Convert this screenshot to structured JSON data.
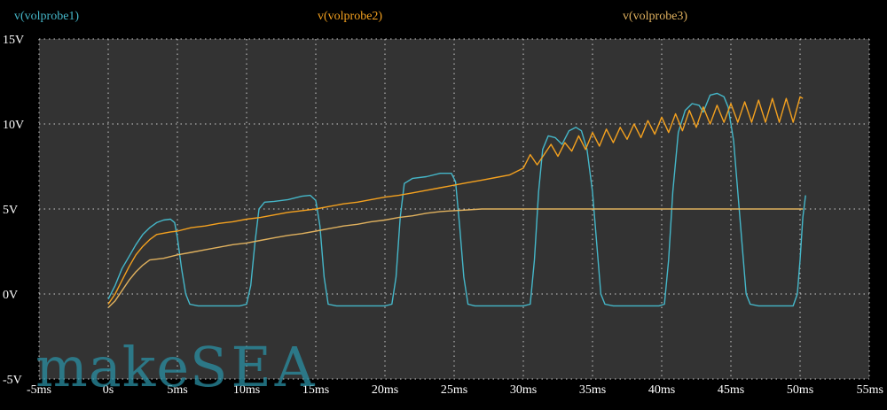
{
  "legend": {
    "probe1": "v(volprobe1)",
    "probe2": "v(volprobe2)",
    "probe3": "v(volprobe3)"
  },
  "watermark": {
    "lower": "make",
    "upper": "SEA"
  },
  "colors": {
    "background": "#000000",
    "plot_area": "#333333",
    "grid": "#cccccc",
    "tick_label": "#ffffff",
    "probe1": "#45b7c9",
    "probe2": "#f4a11f",
    "probe3": "#e0b15e"
  },
  "chart_data": {
    "type": "line",
    "title": "",
    "xlabel": "",
    "ylabel": "",
    "xlim": [
      -5,
      55
    ],
    "ylim": [
      -5,
      15
    ],
    "grid": true,
    "legend_position": "top",
    "x_ticks": [
      -5,
      0,
      5,
      10,
      15,
      20,
      25,
      30,
      35,
      40,
      45,
      50,
      55
    ],
    "x_tick_labels": [
      "-5ms",
      "0s",
      "5ms",
      "10ms",
      "15ms",
      "20ms",
      "25ms",
      "30ms",
      "35ms",
      "40ms",
      "45ms",
      "50ms",
      "55ms"
    ],
    "y_ticks": [
      -5,
      0,
      5,
      10,
      15
    ],
    "y_tick_labels": [
      "-5V",
      "0V",
      "5V",
      "10V",
      "15V"
    ],
    "series": [
      {
        "name": "v(volprobe1)",
        "color": "#45b7c9",
        "points": [
          [
            0,
            -0.3
          ],
          [
            0.5,
            0.5
          ],
          [
            1,
            1.5
          ],
          [
            1.5,
            2.2
          ],
          [
            2,
            2.9
          ],
          [
            2.5,
            3.5
          ],
          [
            3,
            3.9
          ],
          [
            3.5,
            4.2
          ],
          [
            4,
            4.35
          ],
          [
            4.5,
            4.4
          ],
          [
            4.8,
            4.2
          ],
          [
            5,
            3.3
          ],
          [
            5.3,
            1.5
          ],
          [
            5.6,
            0
          ],
          [
            5.9,
            -0.6
          ],
          [
            6.5,
            -0.7
          ],
          [
            9.5,
            -0.7
          ],
          [
            10,
            -0.6
          ],
          [
            10.3,
            0.5
          ],
          [
            10.6,
            3
          ],
          [
            10.9,
            5
          ],
          [
            11.3,
            5.4
          ],
          [
            12,
            5.45
          ],
          [
            13,
            5.55
          ],
          [
            14,
            5.75
          ],
          [
            14.6,
            5.8
          ],
          [
            15,
            5.5
          ],
          [
            15.3,
            4
          ],
          [
            15.6,
            1
          ],
          [
            15.9,
            -0.6
          ],
          [
            16.5,
            -0.7
          ],
          [
            20,
            -0.7
          ],
          [
            20.5,
            -0.6
          ],
          [
            20.8,
            1
          ],
          [
            21.1,
            4.5
          ],
          [
            21.4,
            6.5
          ],
          [
            22,
            6.8
          ],
          [
            23,
            6.9
          ],
          [
            24,
            7.1
          ],
          [
            24.8,
            7.1
          ],
          [
            25.1,
            6.6
          ],
          [
            25.4,
            4
          ],
          [
            25.7,
            1
          ],
          [
            26,
            -0.6
          ],
          [
            26.5,
            -0.7
          ],
          [
            30,
            -0.7
          ],
          [
            30.5,
            -0.6
          ],
          [
            30.8,
            2
          ],
          [
            31.1,
            6
          ],
          [
            31.4,
            8.5
          ],
          [
            31.8,
            9.3
          ],
          [
            32.3,
            9.2
          ],
          [
            32.8,
            8.8
          ],
          [
            33.3,
            9.6
          ],
          [
            33.8,
            9.8
          ],
          [
            34.2,
            9.6
          ],
          [
            34.6,
            8.5
          ],
          [
            35,
            6
          ],
          [
            35.3,
            3
          ],
          [
            35.6,
            0
          ],
          [
            35.9,
            -0.6
          ],
          [
            36.5,
            -0.7
          ],
          [
            39.8,
            -0.7
          ],
          [
            40.2,
            -0.6
          ],
          [
            40.5,
            2
          ],
          [
            40.8,
            6
          ],
          [
            41.2,
            9.5
          ],
          [
            41.7,
            10.8
          ],
          [
            42.2,
            11.2
          ],
          [
            42.7,
            11.1
          ],
          [
            43,
            10.7
          ],
          [
            43.5,
            11.7
          ],
          [
            44,
            11.8
          ],
          [
            44.5,
            11.6
          ],
          [
            44.8,
            11
          ],
          [
            45.2,
            9
          ],
          [
            45.5,
            6
          ],
          [
            45.8,
            3
          ],
          [
            46.1,
            0
          ],
          [
            46.4,
            -0.6
          ],
          [
            47,
            -0.7
          ],
          [
            49.5,
            -0.7
          ],
          [
            49.8,
            0
          ],
          [
            50,
            2
          ],
          [
            50.2,
            4.5
          ],
          [
            50.4,
            5.8
          ]
        ]
      },
      {
        "name": "v(volprobe2)",
        "color": "#f4a11f",
        "points": [
          [
            0,
            -0.6
          ],
          [
            0.5,
            0
          ],
          [
            1,
            0.8
          ],
          [
            1.5,
            1.6
          ],
          [
            2,
            2.3
          ],
          [
            2.5,
            2.8
          ],
          [
            3,
            3.2
          ],
          [
            3.5,
            3.5
          ],
          [
            4.5,
            3.65
          ],
          [
            5,
            3.7
          ],
          [
            6,
            3.9
          ],
          [
            7,
            4
          ],
          [
            8,
            4.15
          ],
          [
            9,
            4.25
          ],
          [
            10,
            4.4
          ],
          [
            11,
            4.5
          ],
          [
            12,
            4.65
          ],
          [
            13,
            4.8
          ],
          [
            14,
            4.9
          ],
          [
            15,
            5
          ],
          [
            16,
            5.15
          ],
          [
            17,
            5.3
          ],
          [
            18,
            5.4
          ],
          [
            19,
            5.55
          ],
          [
            20,
            5.7
          ],
          [
            21,
            5.8
          ],
          [
            22,
            5.95
          ],
          [
            23,
            6.1
          ],
          [
            24,
            6.25
          ],
          [
            25,
            6.4
          ],
          [
            26,
            6.55
          ],
          [
            27,
            6.7
          ],
          [
            28,
            6.85
          ],
          [
            29,
            7
          ],
          [
            30,
            7.4
          ],
          [
            30.5,
            8.2
          ],
          [
            31,
            7.6
          ],
          [
            31.5,
            8.2
          ],
          [
            32,
            8.8
          ],
          [
            32.5,
            8.1
          ],
          [
            33,
            8.9
          ],
          [
            33.5,
            8.4
          ],
          [
            34,
            9.3
          ],
          [
            34.5,
            8.5
          ],
          [
            35,
            9.5
          ],
          [
            35.5,
            8.7
          ],
          [
            36,
            9.7
          ],
          [
            36.5,
            8.9
          ],
          [
            37,
            9.8
          ],
          [
            37.5,
            9.1
          ],
          [
            38,
            10
          ],
          [
            38.5,
            9.2
          ],
          [
            39,
            10.2
          ],
          [
            39.5,
            9.4
          ],
          [
            40,
            10.4
          ],
          [
            40.5,
            9.5
          ],
          [
            41,
            10.6
          ],
          [
            41.5,
            9.6
          ],
          [
            42,
            10.8
          ],
          [
            42.5,
            9.8
          ],
          [
            43,
            11
          ],
          [
            43.5,
            10
          ],
          [
            44,
            11.1
          ],
          [
            44.5,
            10.1
          ],
          [
            45,
            11.2
          ],
          [
            45.5,
            10.1
          ],
          [
            46,
            11.3
          ],
          [
            46.5,
            10.1
          ],
          [
            47,
            11.4
          ],
          [
            47.5,
            10.1
          ],
          [
            48,
            11.5
          ],
          [
            48.5,
            10.1
          ],
          [
            49,
            11.5
          ],
          [
            49.5,
            10.1
          ],
          [
            50,
            11.6
          ],
          [
            50.2,
            11.5
          ]
        ]
      },
      {
        "name": "v(volprobe3)",
        "color": "#e0b15e",
        "points": [
          [
            0,
            -0.8
          ],
          [
            0.5,
            -0.4
          ],
          [
            1,
            0.2
          ],
          [
            1.5,
            0.8
          ],
          [
            2,
            1.3
          ],
          [
            2.5,
            1.7
          ],
          [
            3,
            2
          ],
          [
            4,
            2.1
          ],
          [
            5,
            2.3
          ],
          [
            6,
            2.45
          ],
          [
            7,
            2.6
          ],
          [
            8,
            2.75
          ],
          [
            9,
            2.9
          ],
          [
            10,
            3
          ],
          [
            11,
            3.15
          ],
          [
            12,
            3.3
          ],
          [
            13,
            3.45
          ],
          [
            14,
            3.55
          ],
          [
            15,
            3.7
          ],
          [
            16,
            3.85
          ],
          [
            17,
            4
          ],
          [
            18,
            4.1
          ],
          [
            19,
            4.25
          ],
          [
            20,
            4.35
          ],
          [
            21,
            4.5
          ],
          [
            22,
            4.6
          ],
          [
            23,
            4.75
          ],
          [
            24,
            4.85
          ],
          [
            25,
            4.9
          ],
          [
            26,
            4.95
          ],
          [
            27,
            5
          ],
          [
            30,
            5
          ],
          [
            50.2,
            5
          ]
        ]
      }
    ]
  }
}
